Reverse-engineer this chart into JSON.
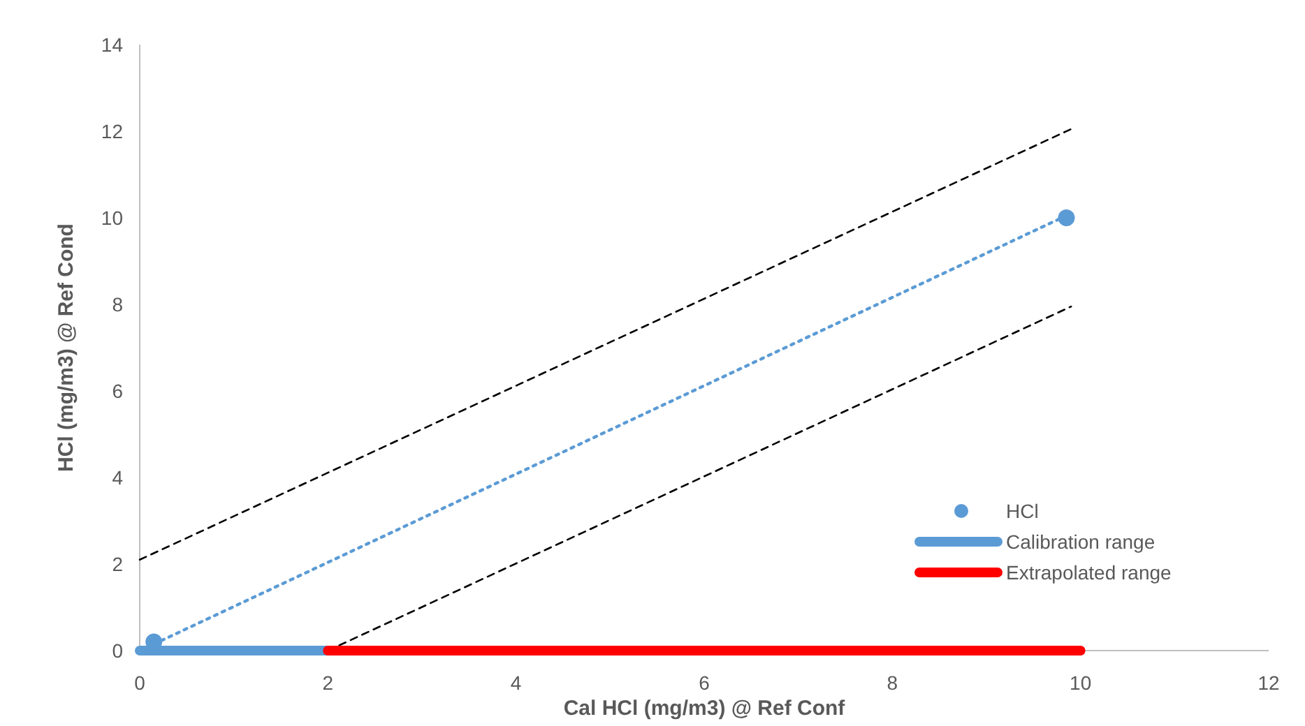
{
  "chart_data": {
    "type": "scatter",
    "xlabel": "Cal HCl (mg/m3) @ Ref Conf",
    "ylabel": "HCl (mg/m3) @ Ref Cond",
    "xlim": [
      0,
      12
    ],
    "ylim": [
      0,
      14
    ],
    "xticks": [
      0,
      2,
      4,
      6,
      8,
      10,
      12
    ],
    "yticks": [
      0,
      2,
      4,
      6,
      8,
      10,
      12,
      14
    ],
    "grid": false,
    "legend": "bottom right",
    "series": [
      {
        "name": "HCl",
        "color": "#5b9bd5",
        "marker": "circle",
        "x": [
          0.15,
          9.85
        ],
        "values": [
          0.2,
          10
        ]
      },
      {
        "type": "line",
        "color": "#5b9bd5",
        "line_style": "dotted",
        "x": [
          0.15,
          9.85
        ],
        "values": [
          0.15,
          10.05
        ]
      },
      {
        "type": "line",
        "color": "#000000",
        "line_style": "dashed",
        "x": [
          0,
          9.9
        ],
        "values": [
          2.1,
          12.05
        ]
      },
      {
        "type": "line",
        "color": "#000000",
        "line_style": "dashed",
        "x": [
          2,
          9.9
        ],
        "values": [
          0,
          7.95
        ]
      },
      {
        "name": "Calibration range",
        "type": "line",
        "color": "#5b9bd5",
        "line_style": "solid",
        "x": [
          0,
          2
        ],
        "values": [
          0,
          0
        ]
      },
      {
        "name": "Extrapolated range",
        "type": "line",
        "color": "#ff0000",
        "line_style": "solid",
        "x": [
          2,
          10
        ],
        "values": [
          0,
          0
        ]
      }
    ]
  }
}
